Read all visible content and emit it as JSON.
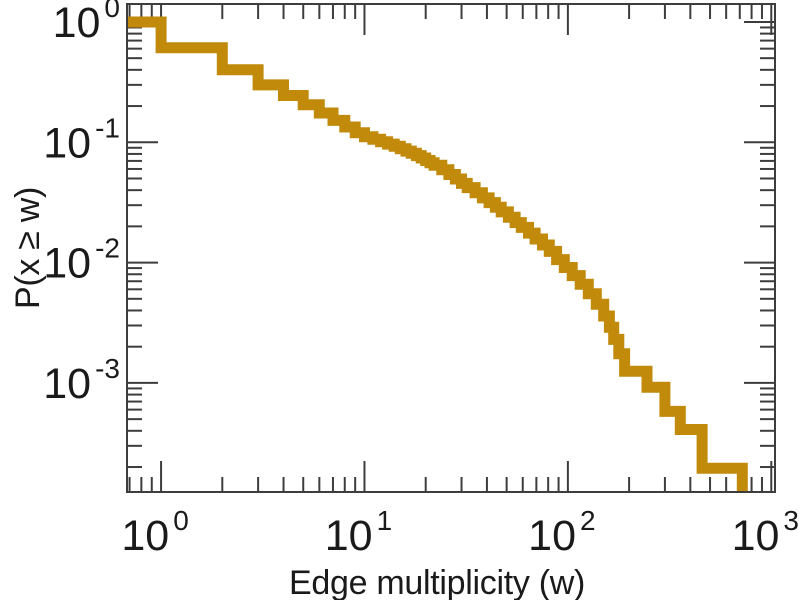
{
  "chart_data": {
    "type": "line",
    "subtype": "ccdf-staircase-log-log",
    "title": "",
    "xlabel": "Edge multiplicity (w)",
    "ylabel": "P(x ≥ w)",
    "x_scale": "log",
    "y_scale": "log",
    "xlim": [
      0.68,
      1043
    ],
    "ylim": [
      0.000124,
      1.41
    ],
    "grid": false,
    "legend": "none",
    "tick_base": "10",
    "x_tick_exponents": [
      0,
      1,
      2,
      3
    ],
    "y_tick_exponents": [
      0,
      -1,
      -2,
      -3
    ],
    "colors": {
      "curve": "#C18A0B",
      "axis": "#3d3d3d",
      "text": "#1a1a1a",
      "background": "#ffffff"
    },
    "ccdf_steps": [
      [
        0.68,
        1.0
      ],
      [
        1,
        0.61
      ],
      [
        2,
        0.4
      ],
      [
        3,
        0.3
      ],
      [
        4,
        0.245
      ],
      [
        5,
        0.205
      ],
      [
        6,
        0.175
      ],
      [
        7,
        0.152
      ],
      [
        8,
        0.134
      ],
      [
        9,
        0.12
      ],
      [
        10,
        0.111
      ],
      [
        11,
        0.106
      ],
      [
        12,
        0.101
      ],
      [
        13,
        0.0965
      ],
      [
        14,
        0.0925
      ],
      [
        15,
        0.0885
      ],
      [
        16,
        0.0845
      ],
      [
        17,
        0.081
      ],
      [
        18,
        0.0775
      ],
      [
        19,
        0.074
      ],
      [
        20,
        0.0705
      ],
      [
        21,
        0.0675
      ],
      [
        22,
        0.0645
      ],
      [
        24,
        0.059
      ],
      [
        26,
        0.054
      ],
      [
        28,
        0.0495
      ],
      [
        30,
        0.0455
      ],
      [
        32,
        0.042
      ],
      [
        35,
        0.038
      ],
      [
        38,
        0.0345
      ],
      [
        41,
        0.0315
      ],
      [
        44,
        0.0288
      ],
      [
        47,
        0.0264
      ],
      [
        51,
        0.0238
      ],
      [
        55,
        0.0215
      ],
      [
        59,
        0.0196
      ],
      [
        64,
        0.0176
      ],
      [
        69,
        0.0157
      ],
      [
        75,
        0.014
      ],
      [
        81,
        0.0124
      ],
      [
        88,
        0.0106
      ],
      [
        96,
        0.0091
      ],
      [
        105,
        0.0078
      ],
      [
        115,
        0.0066
      ],
      [
        126,
        0.0055
      ],
      [
        138,
        0.0045
      ],
      [
        150,
        0.0036
      ],
      [
        160,
        0.0029
      ],
      [
        168,
        0.0023
      ],
      [
        178,
        0.00175
      ],
      [
        190,
        0.00125
      ],
      [
        245,
        0.00092
      ],
      [
        300,
        0.00058
      ],
      [
        357,
        0.00041
      ],
      [
        457,
        0.000195
      ],
      [
        720,
        0.000124
      ]
    ]
  }
}
